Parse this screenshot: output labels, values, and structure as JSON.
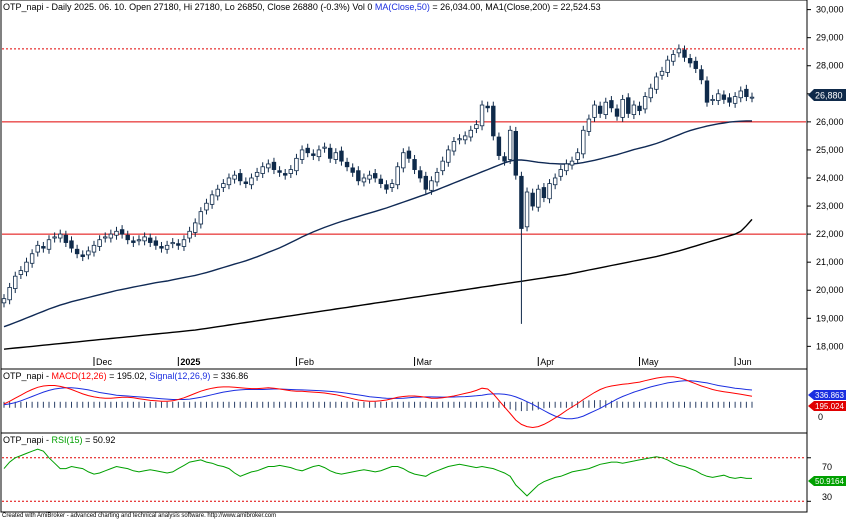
{
  "main": {
    "ticker": "OTP_napi",
    "period": "Daily 2025. 06. 10.",
    "open_label": "Open 27180,",
    "high_label": "Hi 27180,",
    "low_label": "Lo 26850,",
    "close_label": "Close 26880 (-0.3%)",
    "vol_label": "Vol 0",
    "ma50_label": "MA(Close,50)",
    "ma50_value": "= 26,034.00,",
    "ma200_label": "MA1(Close,200)",
    "ma200_value": "= 22,524.53",
    "last_price_badge": "26,880"
  },
  "macd": {
    "ticker": "OTP_napi -",
    "macd_label": "MACD(12,26)",
    "macd_value": "= 195.02,",
    "signal_label": "Signal(12,26,9)",
    "signal_value": "= 336.86",
    "signal_badge": "336.863",
    "macd_badge": "195.024",
    "zero_tick": "0"
  },
  "rsi": {
    "ticker": "OTP_napi -",
    "rsi_label": "RSI(15)",
    "rsi_value": "= 50.92",
    "badge": "50.9164",
    "tick_70": "70",
    "tick_30": "30"
  },
  "footer": "Created with AmiBroker - advanced charting and technical analysis software. http://www.amibroker.com",
  "colors": {
    "up": "#ffffff",
    "down": "#0f2a4a",
    "ma50": "#102a55",
    "ma200": "#000000",
    "hline": "#e00000",
    "macd": "#ff0000",
    "signal": "#1b2ee0",
    "rsi": "#00a000",
    "badge_price": "#0f2a4a",
    "badge_signal": "#1b2ee0",
    "badge_macd": "#e00000",
    "badge_rsi": "#00a000"
  },
  "chart_data": [
    {
      "type": "candlestick",
      "title": "OTP_napi - Daily 2025. 06. 10.",
      "x_labels": [
        "Dec",
        "2025",
        "Feb",
        "Mar",
        "Apr",
        "May",
        "Jun"
      ],
      "y_ticks": [
        18000,
        19000,
        20000,
        21000,
        22000,
        23000,
        24000,
        25000,
        26000,
        27000,
        28000,
        29000,
        30000
      ],
      "ylim": [
        17300,
        30200
      ],
      "horizontal_lines": [
        22000,
        26000
      ],
      "horizontal_dotted_lines": [
        28600
      ],
      "close_series": [
        19700,
        20100,
        20500,
        20700,
        21000,
        21300,
        21600,
        21500,
        21800,
        21900,
        22000,
        21700,
        21500,
        21300,
        21200,
        21400,
        21600,
        21800,
        21900,
        22000,
        22100,
        22000,
        21800,
        21700,
        21800,
        21900,
        21700,
        21600,
        21500,
        21600,
        21700,
        21600,
        21800,
        22100,
        22400,
        22800,
        23100,
        23400,
        23600,
        23800,
        24000,
        24100,
        23900,
        23800,
        24000,
        24200,
        24400,
        24500,
        24300,
        24200,
        24100,
        24300,
        24700,
        25000,
        24900,
        24800,
        25000,
        25100,
        24700,
        24900,
        24600,
        24400,
        24200,
        23900,
        24000,
        24100,
        24000,
        23800,
        23600,
        23800,
        24400,
        24900,
        24700,
        24300,
        24000,
        23600,
        23900,
        24200,
        24600,
        25000,
        25300,
        25400,
        25500,
        25700,
        25900,
        26600,
        26500,
        25500,
        24800,
        24600,
        25700,
        24100,
        22200,
        23500,
        23000,
        23600,
        23300,
        23800,
        24000,
        24300,
        24500,
        24600,
        24900,
        25700,
        26100,
        26600,
        26300,
        26700,
        26500,
        26200,
        26800,
        26300,
        26600,
        26400,
        26900,
        27200,
        27600,
        27800,
        28200,
        28400,
        28600,
        28300,
        28100,
        27900,
        27500,
        26700,
        26800,
        27000,
        26800,
        26700,
        26900,
        27100,
        26900,
        26880
      ],
      "ma50": [
        18700,
        18770,
        18850,
        18930,
        19010,
        19090,
        19170,
        19250,
        19330,
        19400,
        19470,
        19530,
        19590,
        19640,
        19690,
        19740,
        19790,
        19840,
        19890,
        19940,
        19990,
        20030,
        20070,
        20110,
        20150,
        20190,
        20230,
        20270,
        20300,
        20330,
        20370,
        20410,
        20450,
        20490,
        20530,
        20580,
        20630,
        20690,
        20750,
        20810,
        20870,
        20930,
        20990,
        21050,
        21120,
        21190,
        21270,
        21350,
        21430,
        21510,
        21600,
        21700,
        21800,
        21900,
        21990,
        22080,
        22160,
        22240,
        22310,
        22380,
        22450,
        22510,
        22570,
        22630,
        22690,
        22750,
        22810,
        22870,
        22930,
        23000,
        23070,
        23140,
        23210,
        23280,
        23350,
        23420,
        23500,
        23580,
        23660,
        23740,
        23820,
        23900,
        23980,
        24060,
        24140,
        24220,
        24300,
        24380,
        24460,
        24540,
        24600,
        24640,
        24640,
        24620,
        24590,
        24560,
        24540,
        24520,
        24510,
        24500,
        24500,
        24500,
        24520,
        24550,
        24590,
        24630,
        24680,
        24730,
        24780,
        24830,
        24890,
        24950,
        25010,
        25060,
        25110,
        25170,
        25230,
        25300,
        25380,
        25460,
        25540,
        25620,
        25690,
        25750,
        25800,
        25850,
        25890,
        25930,
        25960,
        25990,
        26010,
        26025,
        26034,
        26034
      ],
      "ma200": [
        17900,
        17920,
        17940,
        17960,
        17980,
        18000,
        18020,
        18040,
        18060,
        18080,
        18100,
        18120,
        18140,
        18160,
        18180,
        18200,
        18220,
        18240,
        18260,
        18280,
        18300,
        18320,
        18340,
        18360,
        18380,
        18400,
        18420,
        18440,
        18460,
        18480,
        18500,
        18520,
        18540,
        18560,
        18580,
        18610,
        18640,
        18670,
        18700,
        18730,
        18760,
        18790,
        18820,
        18850,
        18880,
        18910,
        18940,
        18970,
        19000,
        19030,
        19060,
        19090,
        19120,
        19150,
        19180,
        19210,
        19240,
        19270,
        19300,
        19330,
        19360,
        19390,
        19420,
        19450,
        19480,
        19510,
        19540,
        19570,
        19600,
        19630,
        19660,
        19690,
        19720,
        19750,
        19780,
        19810,
        19840,
        19870,
        19900,
        19930,
        19960,
        19990,
        20020,
        20050,
        20080,
        20110,
        20140,
        20170,
        20200,
        20230,
        20260,
        20290,
        20320,
        20350,
        20380,
        20410,
        20440,
        20470,
        20500,
        20530,
        20560,
        20600,
        20640,
        20680,
        20720,
        20760,
        20800,
        20840,
        20880,
        20920,
        20960,
        21000,
        21040,
        21080,
        21120,
        21160,
        21200,
        21250,
        21300,
        21350,
        21400,
        21460,
        21520,
        21580,
        21640,
        21700,
        21760,
        21820,
        21880,
        21940,
        22000,
        22100,
        22300,
        22524
      ]
    },
    {
      "type": "line",
      "title": "MACD(12,26) / Signal(12,26,9)",
      "series": [
        {
          "name": "MACD(12,26)",
          "last": 195.02
        },
        {
          "name": "Signal(12,26,9)",
          "last": 336.86
        }
      ],
      "macd": [
        20,
        80,
        150,
        220,
        290,
        350,
        400,
        430,
        440,
        440,
        420,
        390,
        350,
        300,
        250,
        210,
        180,
        160,
        150,
        150,
        160,
        170,
        170,
        160,
        140,
        120,
        100,
        90,
        80,
        80,
        90,
        120,
        160,
        210,
        260,
        310,
        350,
        380,
        400,
        410,
        410,
        400,
        390,
        380,
        370,
        370,
        380,
        390,
        380,
        360,
        340,
        320,
        310,
        310,
        300,
        290,
        280,
        270,
        250,
        230,
        200,
        170,
        140,
        110,
        90,
        80,
        80,
        90,
        110,
        140,
        170,
        190,
        200,
        200,
        190,
        170,
        150,
        150,
        160,
        180,
        200,
        230,
        260,
        290,
        330,
        380,
        360,
        250,
        100,
        -50,
        -200,
        -350,
        -450,
        -500,
        -520,
        -500,
        -450,
        -380,
        -300,
        -220,
        -130,
        -50,
        30,
        120,
        200,
        280,
        350,
        400,
        430,
        450,
        470,
        480,
        500,
        520,
        550,
        580,
        610,
        630,
        640,
        640,
        620,
        580,
        530,
        480,
        430,
        390,
        350,
        320,
        300,
        280,
        260,
        240,
        220,
        195
      ],
      "signal": [
        0,
        20,
        50,
        90,
        140,
        190,
        240,
        290,
        330,
        360,
        380,
        390,
        390,
        380,
        360,
        340,
        310,
        280,
        260,
        240,
        220,
        210,
        200,
        190,
        180,
        170,
        160,
        150,
        140,
        130,
        120,
        120,
        120,
        130,
        150,
        170,
        200,
        230,
        260,
        290,
        310,
        330,
        340,
        350,
        350,
        350,
        350,
        355,
        360,
        360,
        355,
        350,
        345,
        340,
        335,
        330,
        325,
        315,
        305,
        295,
        280,
        265,
        245,
        225,
        205,
        185,
        170,
        160,
        150,
        145,
        145,
        150,
        160,
        170,
        175,
        180,
        180,
        178,
        175,
        175,
        178,
        182,
        188,
        196,
        206,
        220,
        240,
        250,
        250,
        240,
        220,
        180,
        130,
        70,
        10,
        -60,
        -130,
        -200,
        -260,
        -300,
        -320,
        -320,
        -300,
        -260,
        -200,
        -140,
        -80,
        -10,
        60,
        130,
        190,
        240,
        290,
        330,
        370,
        410,
        440,
        470,
        500,
        520,
        540,
        550,
        550,
        540,
        520,
        500,
        470,
        440,
        420,
        400,
        380,
        365,
        350,
        337
      ],
      "ylim": [
        -600,
        750
      ]
    },
    {
      "type": "line",
      "title": "RSI(15)",
      "series": [
        {
          "name": "RSI(15)",
          "last": 50.92
        }
      ],
      "values": [
        60,
        66,
        70,
        72,
        74,
        76,
        78,
        76,
        70,
        65,
        60,
        60,
        62,
        61,
        60,
        57,
        55,
        56,
        58,
        60,
        62,
        61,
        60,
        58,
        57,
        58,
        59,
        58,
        57,
        56,
        57,
        60,
        63,
        66,
        67,
        68,
        66,
        65,
        63,
        62,
        60,
        56,
        53,
        55,
        57,
        58,
        60,
        62,
        62,
        63,
        62,
        61,
        59,
        58,
        60,
        62,
        63,
        61,
        58,
        56,
        55,
        56,
        57,
        58,
        59,
        58,
        57,
        58,
        60,
        62,
        62,
        60,
        57,
        55,
        54,
        53,
        56,
        58,
        60,
        62,
        63,
        64,
        63,
        62,
        61,
        62,
        61,
        60,
        58,
        56,
        53,
        45,
        40,
        35,
        40,
        45,
        48,
        50,
        52,
        53,
        55,
        57,
        58,
        59,
        60,
        62,
        64,
        65,
        66,
        66,
        65,
        66,
        67,
        68,
        69,
        70,
        71,
        70,
        68,
        65,
        63,
        62,
        60,
        58,
        55,
        53,
        52,
        53,
        54,
        52,
        51,
        52,
        51,
        51
      ],
      "ylim": [
        22,
        90
      ],
      "reference_lines": [
        70,
        30
      ]
    }
  ]
}
